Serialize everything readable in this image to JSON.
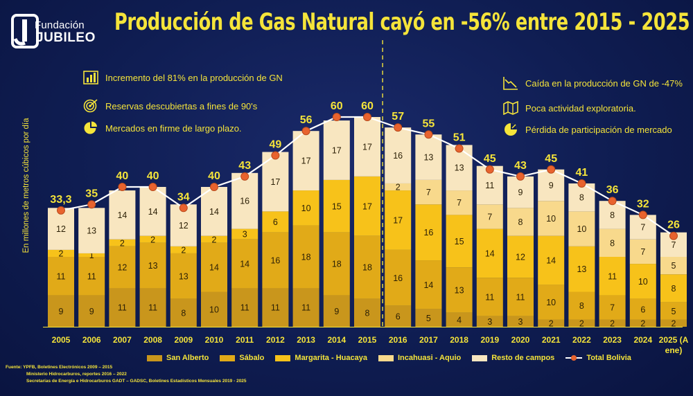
{
  "logo": {
    "line1": "Fundación",
    "line2": "JUBILEO"
  },
  "title": "Producción de Gas Natural cayó en -56% entre 2015 - 2025",
  "annotations_left": [
    {
      "icon": "bar-chart-icon",
      "text": "Incremento del 81% en la producción de GN"
    },
    {
      "icon": "target-icon",
      "text": "Reservas descubiertas a fines de 90's"
    },
    {
      "icon": "pie-chart-icon",
      "text": "Mercados en firme de largo plazo."
    }
  ],
  "annotations_right": [
    {
      "icon": "decline-chart-icon",
      "text": "Caída en la producción de GN de -47%"
    },
    {
      "icon": "map-icon",
      "text": "Poca actividad exploratoria."
    },
    {
      "icon": "pie-loss-icon",
      "text": "Pérdida de participación de mercado"
    }
  ],
  "source": [
    "Fuente: YPFB, Boletines Electrónicos 2009 – 2015",
    "Ministerio Hidrocarburos, reportes 2016 – 2022",
    "Secretarías de Energía e Hidrocarburos GADT – GADSC, Boletines Estadísticos Mensuales 2019 - 2025"
  ],
  "colors": {
    "San Alberto": "#c9961c",
    "Sábalo": "#e1aa18",
    "Margarita - Huacaya": "#f7c21a",
    "Incahuasi - Aquio": "#f8d98c",
    "Resto de campos": "#f8e6c0",
    "total_line": "#ffffff",
    "total_marker": "#e8632e",
    "text": "#f5e43a"
  },
  "chart_data": {
    "type": "bar",
    "stacked": true,
    "ylabel": "En millones de metros cúbicos por día",
    "categories": [
      "2005",
      "2006",
      "2007",
      "2008",
      "2009",
      "2010",
      "2011",
      "2012",
      "2013",
      "2014",
      "2015",
      "2016",
      "2017",
      "2018",
      "2019",
      "2020",
      "2021",
      "2022",
      "2023",
      "2024",
      "2025 (A ene)"
    ],
    "series": [
      {
        "name": "San Alberto",
        "values": [
          9,
          9,
          11,
          11,
          8,
          10,
          11,
          11,
          11,
          9,
          8,
          6,
          5,
          4,
          3,
          3,
          2,
          2,
          2,
          2,
          2
        ]
      },
      {
        "name": "Sábalo",
        "values": [
          11,
          11,
          12,
          13,
          13,
          14,
          14,
          16,
          18,
          18,
          18,
          16,
          14,
          13,
          11,
          11,
          10,
          8,
          7,
          6,
          5
        ]
      },
      {
        "name": "Margarita - Huacaya",
        "values": [
          2,
          1,
          2,
          2,
          2,
          2,
          3,
          6,
          10,
          15,
          17,
          17,
          16,
          15,
          14,
          12,
          14,
          13,
          11,
          10,
          8
        ]
      },
      {
        "name": "Incahuasi - Aquio",
        "values": [
          null,
          null,
          null,
          null,
          null,
          null,
          null,
          null,
          null,
          null,
          null,
          2,
          7,
          7,
          7,
          8,
          10,
          10,
          8,
          7,
          5
        ]
      },
      {
        "name": "Resto de campos",
        "values": [
          12,
          13,
          14,
          14,
          12,
          14,
          16,
          17,
          17,
          17,
          17,
          16,
          13,
          13,
          11,
          9,
          9,
          8,
          8,
          7,
          7
        ]
      }
    ],
    "totals": {
      "name": "Total Bolivia",
      "values": [
        33.3,
        35,
        40,
        40,
        34,
        40,
        43,
        49,
        56,
        60,
        60,
        57,
        55,
        51,
        45,
        43,
        45,
        41,
        36,
        32,
        26
      ],
      "labels": [
        "33,3",
        "35",
        "40",
        "40",
        "34",
        "40",
        "43",
        "49",
        "56",
        "60",
        "60",
        "57",
        "55",
        "51",
        "45",
        "43",
        "45",
        "41",
        "36",
        "32",
        "26"
      ]
    },
    "divider_after": "2015",
    "ylim": [
      0,
      70
    ],
    "grid": false,
    "legend_position": "bottom"
  }
}
